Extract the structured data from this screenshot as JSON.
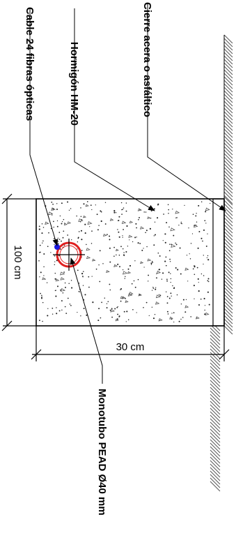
{
  "labels": {
    "cable": "Cable 24 fibras ópticas",
    "concrete": "Hormigón HM-20",
    "closure": "Cierre acera o asfáltico",
    "duct": "Monotubo PEAD Ø40 mm"
  },
  "dimensions": {
    "depth": "100 cm",
    "width": "30 cm"
  },
  "colors": {
    "line": "#000000",
    "duct": "#e02020",
    "cable": "#1a1ae0",
    "aggregate": "#555555"
  }
}
